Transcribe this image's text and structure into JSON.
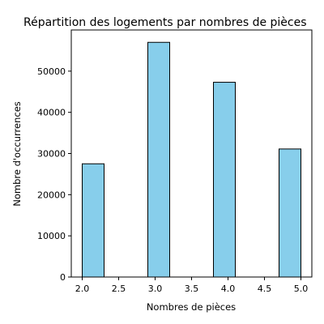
{
  "chart_data": {
    "type": "histogram",
    "title": "Répartition des logements par nombres de pièces",
    "xlabel": "Nombres de pièces",
    "ylabel": "Nombre d'occurrences",
    "xlim": [
      1.85,
      5.15
    ],
    "ylim": [
      0,
      60000
    ],
    "xticks": [
      2.0,
      2.5,
      3.0,
      3.5,
      4.0,
      4.5,
      5.0
    ],
    "xtick_labels": [
      "2.0",
      "2.5",
      "3.0",
      "3.5",
      "4.0",
      "4.5",
      "5.0"
    ],
    "yticks": [
      0,
      10000,
      20000,
      30000,
      40000,
      50000
    ],
    "ytick_labels": [
      "0",
      "10000",
      "20000",
      "30000",
      "40000",
      "50000"
    ],
    "bin_edges": [
      2.0,
      2.3,
      2.6,
      2.9,
      3.2,
      3.5,
      3.8,
      4.1,
      4.4,
      4.7,
      5.0
    ],
    "values": [
      27500,
      0,
      0,
      57000,
      0,
      0,
      47300,
      0,
      0,
      31100
    ],
    "grid": false,
    "colors": {
      "bar_fill": "#87ceeb",
      "bar_edge": "#000000"
    }
  }
}
